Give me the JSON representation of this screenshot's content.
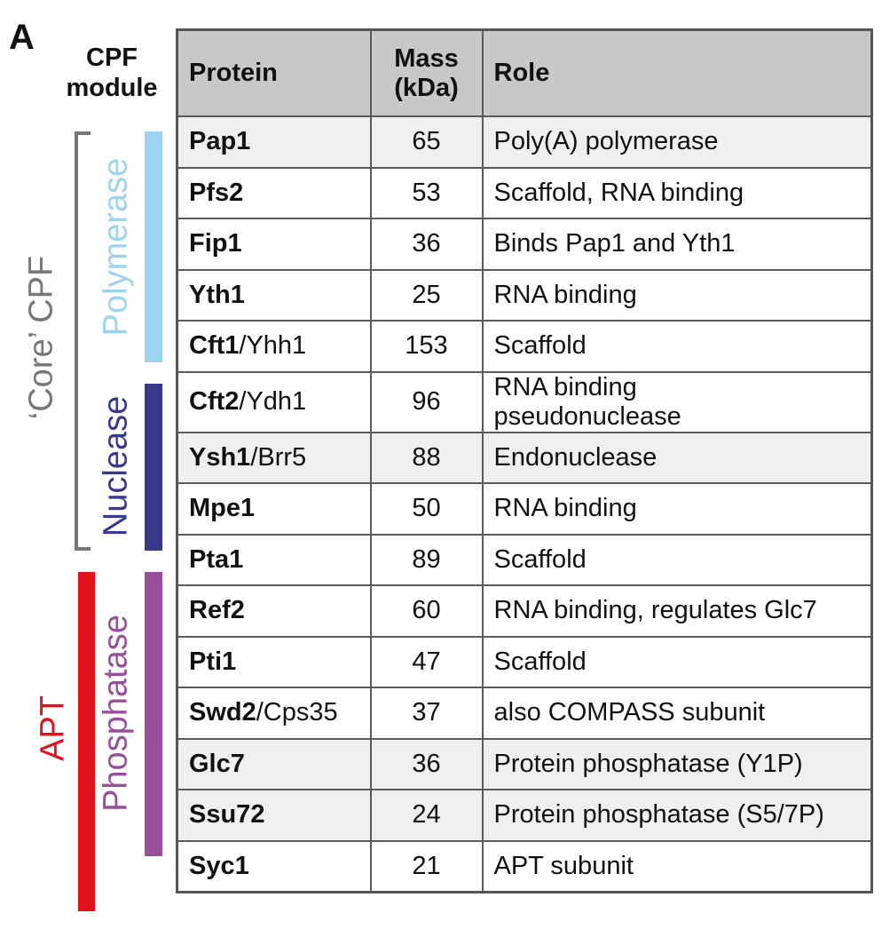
{
  "panel_label": "A",
  "module_header": {
    "line1": "CPF",
    "line2": "module"
  },
  "table": {
    "headers": {
      "protein": "Protein",
      "mass_line1": "Mass",
      "mass_line2": "(kDa)",
      "role": "Role"
    },
    "rows": [
      {
        "protein": "Pap1",
        "alias": "",
        "mass": "65",
        "role": "Poly(A) polymerase",
        "shaded": true
      },
      {
        "protein": "Pfs2",
        "alias": "",
        "mass": "53",
        "role": "Scaffold, RNA binding",
        "shaded": false
      },
      {
        "protein": "Fip1",
        "alias": "",
        "mass": "36",
        "role": "Binds Pap1 and Yth1",
        "shaded": false
      },
      {
        "protein": "Yth1",
        "alias": "",
        "mass": "25",
        "role": "RNA binding",
        "shaded": false
      },
      {
        "protein": "Cft1",
        "alias": "/Yhh1",
        "mass": "153",
        "role": "Scaffold",
        "shaded": false
      },
      {
        "protein": "Cft2",
        "alias": "/Ydh1",
        "mass": "96",
        "role": "RNA binding\npseudonuclease",
        "shaded": false
      },
      {
        "protein": "Ysh1",
        "alias": "/Brr5",
        "mass": "88",
        "role": "Endonuclease",
        "shaded": true
      },
      {
        "protein": "Mpe1",
        "alias": "",
        "mass": "50",
        "role": "RNA binding",
        "shaded": false
      },
      {
        "protein": "Pta1",
        "alias": "",
        "mass": "89",
        "role": "Scaffold",
        "shaded": false
      },
      {
        "protein": "Ref2",
        "alias": "",
        "mass": "60",
        "role": "RNA binding, regulates Glc7",
        "shaded": false
      },
      {
        "protein": "Pti1",
        "alias": "",
        "mass": "47",
        "role": "Scaffold",
        "shaded": false
      },
      {
        "protein": "Swd2",
        "alias": "/Cps35",
        "mass": "37",
        "role": "also COMPASS subunit",
        "shaded": false
      },
      {
        "protein": "Glc7",
        "alias": "",
        "mass": "36",
        "role": "Protein phosphatase (Y1P)",
        "shaded": true
      },
      {
        "protein": "Ssu72",
        "alias": "",
        "mass": "24",
        "role": "Protein phosphatase (S5/7P)",
        "shaded": true
      },
      {
        "protein": "Syc1",
        "alias": "",
        "mass": "21",
        "role": "APT subunit",
        "shaded": false
      }
    ]
  },
  "groups": {
    "core": {
      "label": "‘Core’ CPF",
      "color": "#777777"
    },
    "apt": {
      "label": "APT",
      "color": "#e3101e"
    },
    "polymerase": {
      "label": "Polymerase",
      "color": "#9dd3ef"
    },
    "nuclease": {
      "label": "Nuclease",
      "color": "#373a8b"
    },
    "phosphatase": {
      "label": "Phosphatase",
      "color": "#984f9b"
    }
  }
}
